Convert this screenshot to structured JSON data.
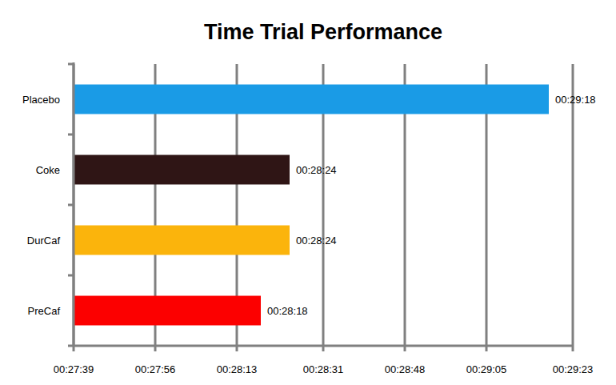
{
  "chart_data": {
    "type": "bar",
    "orientation": "horizontal",
    "title": "Time Trial Performance",
    "categories": [
      "Placebo",
      "Coke",
      "DurCaf",
      "PreCaf"
    ],
    "values": [
      1758,
      1704,
      1704,
      1698
    ],
    "value_labels": [
      "00:29:18",
      "00:28:24",
      "00:28:24",
      "00:28:18"
    ],
    "colors": [
      "#1a9be6",
      "#2f1515",
      "#fbb40c",
      "#fc0000"
    ],
    "data_labels": true,
    "grid": true,
    "xlim": [
      1659,
      1763
    ],
    "xticks": [
      {
        "value": 1659,
        "label": "00:27:39"
      },
      {
        "value": 1676,
        "label": "00:27:56"
      },
      {
        "value": 1693,
        "label": "00:28:13"
      },
      {
        "value": 1711,
        "label": "00:28:31"
      },
      {
        "value": 1728,
        "label": "00:28:48"
      },
      {
        "value": 1745,
        "label": "00:29:05"
      },
      {
        "value": 1763,
        "label": "00:29:23"
      }
    ]
  }
}
